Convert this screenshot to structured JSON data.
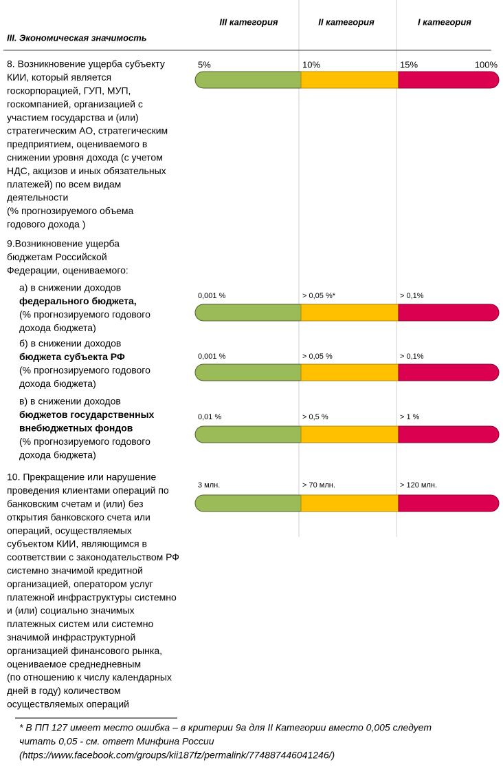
{
  "header": {
    "section": "III. Экономическая значимость",
    "columns": [
      "III категория",
      "II категория",
      "I категория"
    ]
  },
  "criteria": [
    {
      "lines": [
        "8. Возникновение ущерба субъекту",
        "КИИ, который является",
        "госкорпорацией, ГУП, МУП,",
        "госкомпанией, организацией с",
        "участием государства и (или)",
        "стратегическим АО, стратегическим",
        "предприятием, оцениваемого в",
        "снижении уровня дохода (с учетом",
        "НДС, акцизов и иных обязательных",
        "платежей) по всем видам",
        "деятельности",
        "(% прогнозируемого объема",
        "годового дохода )"
      ],
      "scale": [
        "5%",
        "10%",
        "15%",
        "100%"
      ]
    },
    {
      "lines": [
        "9.Возникновение ущерба",
        "бюджетам Российской",
        "Федерации, оцениваемого:"
      ],
      "items": [
        {
          "intro": "а) в снижении доходов",
          "bold": [
            "федерального бюджета,"
          ],
          "note": [
            "(% прогнозируемого годового",
            "дохода бюджета)"
          ],
          "scale": [
            "0,001 %",
            "> 0,05 %*",
            "> 0,1%"
          ]
        },
        {
          "intro": "б) в снижении доходов",
          "bold": [
            "бюджета субъекта РФ"
          ],
          "note": [
            "(% прогнозируемого годового",
            "дохода бюджета)"
          ],
          "scale": [
            "0,001 %",
            "> 0,05 %",
            "> 0,1%"
          ]
        },
        {
          "intro": "в) в снижении доходов",
          "bold": [
            "бюджетов государственных",
            "внебюджетных фондов"
          ],
          "note": [
            "(% прогнозируемого годового",
            "дохода бюджета)"
          ],
          "scale": [
            "0,01 %",
            "> 0,5 %",
            "> 1 %"
          ]
        }
      ]
    },
    {
      "lines": [
        "10. Прекращение или нарушение",
        "проведения клиентами операций по",
        "банковским счетам и (или) без",
        "открытия банковского счета или",
        "операций, осуществляемых",
        "субъектом КИИ, являющимся в",
        "соответствии с законодательством РФ",
        "системно значимой кредитной",
        "организацией, оператором услуг",
        "платежной инфраструктуры системно",
        "и (или) социально значимых",
        "платежных систем или системно",
        "значимой инфраструктурной",
        "организацией финансового рынка,",
        "оцениваемое среднедневным",
        "(по отношению к числу календарных",
        "дней в году) количеством",
        "осуществляемых операций"
      ],
      "scale": [
        "3 млн.",
        "> 70 млн.",
        "> 120 млн."
      ]
    }
  ],
  "footnote": [
    "* В ПП 127 имеет место ошибка – в критерии 9а для II Категории вместо 0,005 следует",
    "читать 0,05 - см. ответ Минфина России",
    "(https://www.facebook.com/groups/kii187fz/permalink/774887446041246/)"
  ]
}
